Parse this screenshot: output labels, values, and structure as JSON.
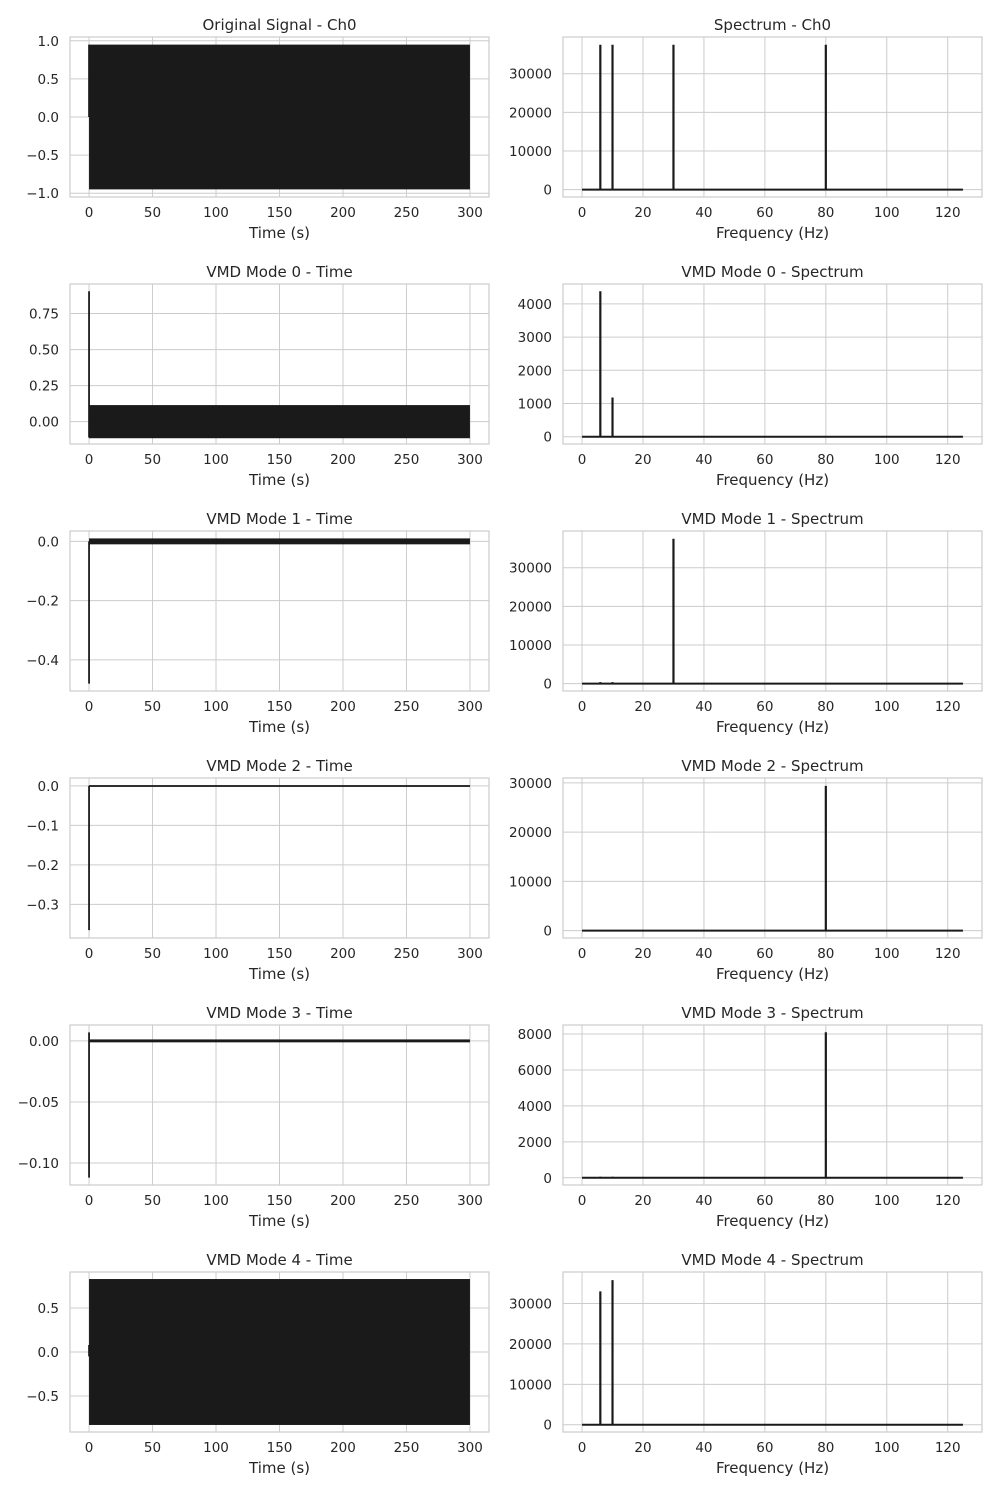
{
  "chart_data": [
    {
      "type": "line",
      "title": "Original Signal - Ch0",
      "xlabel": "Time (s)",
      "ylabel": "",
      "xlim": [
        -15,
        315
      ],
      "ylim": [
        -1.05,
        1.05
      ],
      "xticks": [
        0,
        50,
        100,
        150,
        200,
        250,
        300
      ],
      "yticks": [
        -1.0,
        -0.5,
        0.0,
        0.5,
        1.0
      ],
      "yticklabels": [
        "−1.0",
        "−0.5",
        "0.0",
        "0.5",
        "1.0"
      ],
      "grid": true,
      "series": [
        {
          "style": "envelope",
          "color": "#1a1a1a",
          "x_range": [
            0,
            300
          ],
          "upper": 0.95,
          "lower": -0.95,
          "points": [
            [
              0,
              0.0
            ],
            [
              0,
              0.95
            ]
          ]
        }
      ]
    },
    {
      "type": "line",
      "title": "Spectrum - Ch0",
      "xlabel": "Frequency (Hz)",
      "ylabel": "",
      "xlim": [
        -6.25,
        131.25
      ],
      "ylim": [
        -1900,
        39500
      ],
      "xticks": [
        0,
        20,
        40,
        60,
        80,
        100,
        120
      ],
      "yticks": [
        0,
        10000,
        20000,
        30000
      ],
      "grid": true,
      "series": [
        {
          "style": "spectrum",
          "color": "#1a1a1a",
          "f_range": [
            0,
            125
          ],
          "peaks": [
            [
              6,
              37500
            ],
            [
              10,
              37500
            ],
            [
              30,
              37500
            ],
            [
              80,
              37500
            ]
          ]
        }
      ]
    },
    {
      "type": "line",
      "title": "VMD Mode 0 - Time",
      "xlabel": "Time (s)",
      "ylabel": "",
      "xlim": [
        -15,
        315
      ],
      "ylim": [
        -0.155,
        0.955
      ],
      "xticks": [
        0,
        50,
        100,
        150,
        200,
        250,
        300
      ],
      "yticks": [
        0.0,
        0.25,
        0.5,
        0.75
      ],
      "yticklabels": [
        "0.00",
        "0.25",
        "0.50",
        "0.75"
      ],
      "grid": true,
      "series": [
        {
          "style": "envelope",
          "color": "#1a1a1a",
          "x_range": [
            0,
            300
          ],
          "upper": 0.115,
          "lower": -0.115,
          "points": [
            [
              0,
              0.905
            ],
            [
              0,
              -0.11
            ]
          ]
        }
      ]
    },
    {
      "type": "line",
      "title": "VMD Mode 0 - Spectrum",
      "xlabel": "Frequency (Hz)",
      "ylabel": "",
      "xlim": [
        -6.25,
        131.25
      ],
      "ylim": [
        -220,
        4600
      ],
      "xticks": [
        0,
        20,
        40,
        60,
        80,
        100,
        120
      ],
      "yticks": [
        0,
        1000,
        2000,
        3000,
        4000
      ],
      "grid": true,
      "series": [
        {
          "style": "spectrum",
          "color": "#1a1a1a",
          "f_range": [
            0,
            125
          ],
          "peaks": [
            [
              6,
              4380
            ],
            [
              10,
              1180
            ]
          ]
        }
      ]
    },
    {
      "type": "line",
      "title": "VMD Mode 1 - Time",
      "xlabel": "Time (s)",
      "ylabel": "",
      "xlim": [
        -15,
        315
      ],
      "ylim": [
        -0.505,
        0.035
      ],
      "xticks": [
        0,
        50,
        100,
        150,
        200,
        250,
        300
      ],
      "yticks": [
        -0.4,
        -0.2,
        0.0
      ],
      "yticklabels": [
        "−0.4",
        "−0.2",
        "0.0"
      ],
      "grid": true,
      "series": [
        {
          "style": "envelope",
          "color": "#1a1a1a",
          "x_range": [
            0,
            300
          ],
          "upper": 0.01,
          "lower": -0.01,
          "points": [
            [
              0,
              0.0
            ],
            [
              0,
              -0.48
            ]
          ]
        }
      ]
    },
    {
      "type": "line",
      "title": "VMD Mode 1 - Spectrum",
      "xlabel": "Frequency (Hz)",
      "ylabel": "",
      "xlim": [
        -6.25,
        131.25
      ],
      "ylim": [
        -1900,
        39500
      ],
      "xticks": [
        0,
        20,
        40,
        60,
        80,
        100,
        120
      ],
      "yticks": [
        0,
        10000,
        20000,
        30000
      ],
      "grid": true,
      "series": [
        {
          "style": "spectrum",
          "color": "#1a1a1a",
          "f_range": [
            0,
            125
          ],
          "peaks": [
            [
              6,
              400
            ],
            [
              10,
              400
            ],
            [
              30,
              37500
            ]
          ]
        }
      ]
    },
    {
      "type": "line",
      "title": "VMD Mode 2 - Time",
      "xlabel": "Time (s)",
      "ylabel": "",
      "xlim": [
        -15,
        315
      ],
      "ylim": [
        -0.385,
        0.02
      ],
      "xticks": [
        0,
        50,
        100,
        150,
        200,
        250,
        300
      ],
      "yticks": [
        -0.3,
        -0.2,
        -0.1,
        0.0
      ],
      "yticklabels": [
        "−0.3",
        "−0.2",
        "−0.1",
        "0.0"
      ],
      "grid": true,
      "series": [
        {
          "style": "envelope",
          "color": "#1a1a1a",
          "x_range": [
            0,
            300
          ],
          "upper": 0.002,
          "lower": -0.002,
          "points": [
            [
              0,
              0.0
            ],
            [
              0,
              -0.365
            ]
          ]
        }
      ]
    },
    {
      "type": "line",
      "title": "VMD Mode 2 - Spectrum",
      "xlabel": "Frequency (Hz)",
      "ylabel": "",
      "xlim": [
        -6.25,
        131.25
      ],
      "ylim": [
        -1500,
        31000
      ],
      "xticks": [
        0,
        20,
        40,
        60,
        80,
        100,
        120
      ],
      "yticks": [
        0,
        10000,
        20000,
        30000
      ],
      "grid": true,
      "series": [
        {
          "style": "spectrum",
          "color": "#1a1a1a",
          "f_range": [
            0,
            125
          ],
          "peaks": [
            [
              80,
              29400
            ]
          ]
        }
      ]
    },
    {
      "type": "line",
      "title": "VMD Mode 3 - Time",
      "xlabel": "Time (s)",
      "ylabel": "",
      "xlim": [
        -15,
        315
      ],
      "ylim": [
        -0.118,
        0.013
      ],
      "xticks": [
        0,
        50,
        100,
        150,
        200,
        250,
        300
      ],
      "yticks": [
        -0.1,
        -0.05,
        0.0
      ],
      "yticklabels": [
        "−0.10",
        "−0.05",
        "0.00"
      ],
      "grid": true,
      "series": [
        {
          "style": "envelope",
          "color": "#1a1a1a",
          "x_range": [
            0,
            300
          ],
          "upper": 0.0012,
          "lower": -0.0012,
          "points": [
            [
              0,
              0.007
            ],
            [
              0,
              -0.112
            ]
          ]
        }
      ]
    },
    {
      "type": "line",
      "title": "VMD Mode 3 - Spectrum",
      "xlabel": "Frequency (Hz)",
      "ylabel": "",
      "xlim": [
        -6.25,
        131.25
      ],
      "ylim": [
        -400,
        8500
      ],
      "xticks": [
        0,
        20,
        40,
        60,
        80,
        100,
        120
      ],
      "yticks": [
        0,
        2000,
        4000,
        6000,
        8000
      ],
      "grid": true,
      "series": [
        {
          "style": "spectrum",
          "color": "#1a1a1a",
          "f_range": [
            0,
            125
          ],
          "peaks": [
            [
              6,
              60
            ],
            [
              10,
              60
            ],
            [
              80,
              8100
            ]
          ]
        }
      ]
    },
    {
      "type": "line",
      "title": "VMD Mode 4 - Time",
      "xlabel": "Time (s)",
      "ylabel": "",
      "xlim": [
        -15,
        315
      ],
      "ylim": [
        -0.91,
        0.91
      ],
      "xticks": [
        0,
        50,
        100,
        150,
        200,
        250,
        300
      ],
      "yticks": [
        -0.5,
        0.0,
        0.5
      ],
      "yticklabels": [
        "−0.5",
        "0.0",
        "0.5"
      ],
      "grid": true,
      "series": [
        {
          "style": "envelope",
          "color": "#1a1a1a",
          "x_range": [
            0,
            300
          ],
          "upper": 0.83,
          "lower": -0.83,
          "points": [
            [
              0,
              0.08
            ],
            [
              0,
              -0.05
            ]
          ]
        }
      ]
    },
    {
      "type": "line",
      "title": "VMD Mode 4 - Spectrum",
      "xlabel": "Frequency (Hz)",
      "ylabel": "",
      "xlim": [
        -6.25,
        131.25
      ],
      "ylim": [
        -1800,
        37800
      ],
      "xticks": [
        0,
        20,
        40,
        60,
        80,
        100,
        120
      ],
      "yticks": [
        0,
        10000,
        20000,
        30000
      ],
      "grid": true,
      "series": [
        {
          "style": "spectrum",
          "color": "#1a1a1a",
          "f_range": [
            0,
            125
          ],
          "peaks": [
            [
              6,
              33000
            ],
            [
              10,
              35800
            ]
          ]
        }
      ]
    }
  ]
}
